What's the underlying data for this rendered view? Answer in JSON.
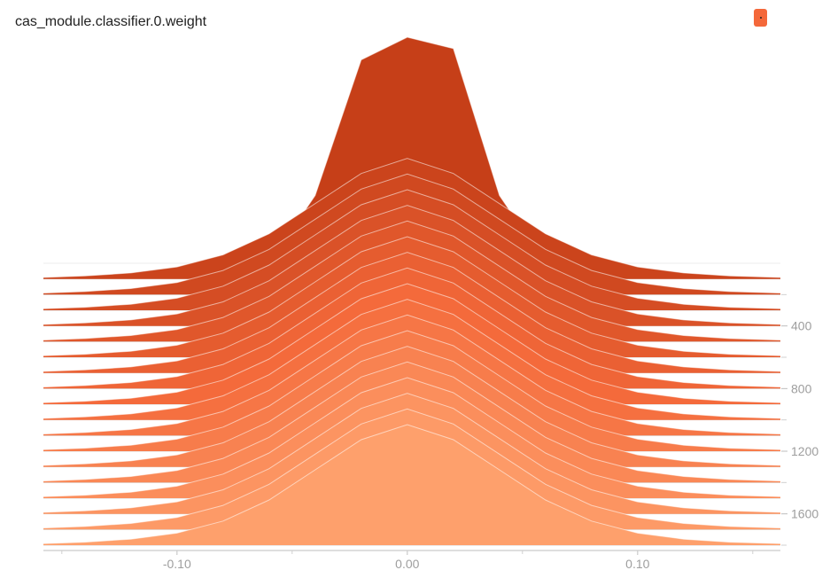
{
  "card": {
    "title": "cas_module.classifier.0.weight"
  },
  "legend": {
    "color": "#f4683a",
    "icon": "run-color-swatch"
  },
  "chart_data": {
    "type": "area",
    "mode": "offset-histogram",
    "title": "cas_module.classifier.0.weight",
    "xlabel": "",
    "ylabel": "",
    "x_ticks": [
      -0.1,
      0.0,
      0.1
    ],
    "x_tick_labels": [
      "-0.10",
      "0.00",
      "0.10"
    ],
    "step_ticks": [
      400,
      800,
      1200,
      1600
    ],
    "step_tick_labels": [
      "400",
      "800",
      "1200",
      "1600"
    ],
    "xlim": [
      -0.158,
      0.162
    ],
    "step_range": [
      0,
      1800
    ],
    "grid": false,
    "colors": {
      "early": "#c63f18",
      "mid": "#f46a3b",
      "late": "#fea06c"
    },
    "x": [
      -0.158,
      -0.14,
      -0.12,
      -0.1,
      -0.08,
      -0.06,
      -0.04,
      -0.02,
      0.0,
      0.02,
      0.04,
      0.06,
      0.08,
      0.1,
      0.12,
      0.14,
      0.162
    ],
    "series": [
      {
        "step": 0,
        "counts": [
          0,
          0,
          0,
          0,
          0,
          0,
          0.3,
          0.9,
          1.0,
          0.95,
          0.3,
          0,
          0,
          0,
          0,
          0,
          0
        ]
      },
      {
        "step": 100,
        "counts": [
          0.01,
          0.02,
          0.04,
          0.08,
          0.16,
          0.3,
          0.5,
          0.7,
          0.8,
          0.7,
          0.5,
          0.3,
          0.16,
          0.08,
          0.04,
          0.02,
          0.01
        ]
      },
      {
        "step": 200,
        "counts": [
          0.01,
          0.02,
          0.04,
          0.08,
          0.16,
          0.3,
          0.5,
          0.7,
          0.8,
          0.7,
          0.5,
          0.3,
          0.16,
          0.08,
          0.04,
          0.02,
          0.01
        ]
      },
      {
        "step": 300,
        "counts": [
          0.01,
          0.02,
          0.04,
          0.08,
          0.16,
          0.3,
          0.5,
          0.7,
          0.8,
          0.7,
          0.5,
          0.3,
          0.16,
          0.08,
          0.04,
          0.02,
          0.01
        ]
      },
      {
        "step": 400,
        "counts": [
          0.01,
          0.02,
          0.04,
          0.08,
          0.16,
          0.3,
          0.5,
          0.7,
          0.8,
          0.7,
          0.5,
          0.3,
          0.16,
          0.08,
          0.04,
          0.02,
          0.01
        ]
      },
      {
        "step": 500,
        "counts": [
          0.01,
          0.02,
          0.04,
          0.08,
          0.16,
          0.3,
          0.5,
          0.7,
          0.8,
          0.7,
          0.5,
          0.3,
          0.16,
          0.08,
          0.04,
          0.02,
          0.01
        ]
      },
      {
        "step": 600,
        "counts": [
          0.01,
          0.02,
          0.04,
          0.08,
          0.16,
          0.3,
          0.5,
          0.7,
          0.8,
          0.7,
          0.5,
          0.3,
          0.16,
          0.08,
          0.04,
          0.02,
          0.01
        ]
      },
      {
        "step": 700,
        "counts": [
          0.01,
          0.02,
          0.04,
          0.08,
          0.16,
          0.3,
          0.5,
          0.7,
          0.8,
          0.7,
          0.5,
          0.3,
          0.16,
          0.08,
          0.04,
          0.02,
          0.01
        ]
      },
      {
        "step": 800,
        "counts": [
          0.01,
          0.02,
          0.04,
          0.08,
          0.16,
          0.3,
          0.5,
          0.7,
          0.8,
          0.7,
          0.5,
          0.3,
          0.16,
          0.08,
          0.04,
          0.02,
          0.01
        ]
      },
      {
        "step": 900,
        "counts": [
          0.01,
          0.02,
          0.04,
          0.08,
          0.16,
          0.3,
          0.5,
          0.7,
          0.8,
          0.7,
          0.5,
          0.3,
          0.16,
          0.08,
          0.04,
          0.02,
          0.01
        ]
      },
      {
        "step": 1000,
        "counts": [
          0.01,
          0.02,
          0.04,
          0.08,
          0.16,
          0.3,
          0.5,
          0.7,
          0.8,
          0.7,
          0.5,
          0.3,
          0.16,
          0.08,
          0.04,
          0.02,
          0.01
        ]
      },
      {
        "step": 1100,
        "counts": [
          0.01,
          0.02,
          0.04,
          0.08,
          0.16,
          0.3,
          0.5,
          0.7,
          0.8,
          0.7,
          0.5,
          0.3,
          0.16,
          0.08,
          0.04,
          0.02,
          0.01
        ]
      },
      {
        "step": 1200,
        "counts": [
          0.01,
          0.02,
          0.04,
          0.08,
          0.16,
          0.3,
          0.5,
          0.7,
          0.8,
          0.7,
          0.5,
          0.3,
          0.16,
          0.08,
          0.04,
          0.02,
          0.01
        ]
      },
      {
        "step": 1300,
        "counts": [
          0.01,
          0.02,
          0.04,
          0.08,
          0.16,
          0.3,
          0.5,
          0.7,
          0.8,
          0.7,
          0.5,
          0.3,
          0.16,
          0.08,
          0.04,
          0.02,
          0.01
        ]
      },
      {
        "step": 1400,
        "counts": [
          0.01,
          0.02,
          0.04,
          0.08,
          0.16,
          0.3,
          0.5,
          0.7,
          0.8,
          0.7,
          0.5,
          0.3,
          0.16,
          0.08,
          0.04,
          0.02,
          0.01
        ]
      },
      {
        "step": 1500,
        "counts": [
          0.01,
          0.02,
          0.04,
          0.08,
          0.16,
          0.3,
          0.5,
          0.7,
          0.8,
          0.7,
          0.5,
          0.3,
          0.16,
          0.08,
          0.04,
          0.02,
          0.01
        ]
      },
      {
        "step": 1600,
        "counts": [
          0.01,
          0.02,
          0.04,
          0.08,
          0.16,
          0.3,
          0.5,
          0.7,
          0.8,
          0.7,
          0.5,
          0.3,
          0.16,
          0.08,
          0.04,
          0.02,
          0.01
        ]
      },
      {
        "step": 1700,
        "counts": [
          0.01,
          0.02,
          0.04,
          0.08,
          0.16,
          0.3,
          0.5,
          0.7,
          0.8,
          0.7,
          0.5,
          0.3,
          0.16,
          0.08,
          0.04,
          0.02,
          0.01
        ]
      },
      {
        "step": 1800,
        "counts": [
          0.01,
          0.02,
          0.04,
          0.08,
          0.16,
          0.3,
          0.5,
          0.7,
          0.8,
          0.7,
          0.5,
          0.3,
          0.16,
          0.08,
          0.04,
          0.02,
          0.01
        ]
      }
    ]
  }
}
